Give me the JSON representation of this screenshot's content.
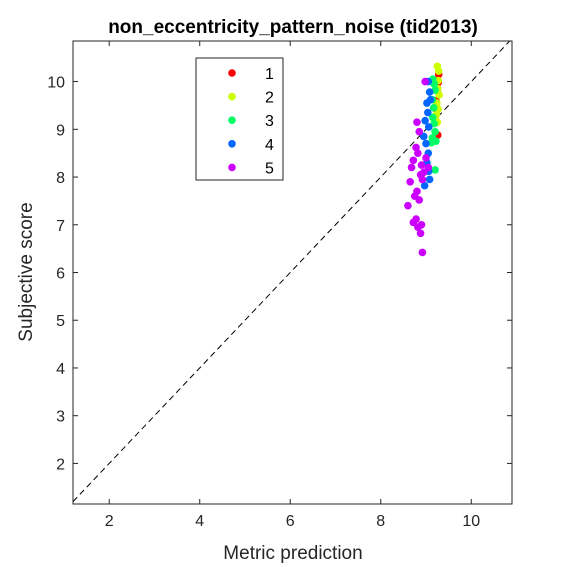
{
  "chart_data": {
    "type": "scatter",
    "title": "non_eccentricity_pattern_noise (tid2013)",
    "xlabel": "Metric prediction",
    "ylabel": "Subjective score",
    "xlim": [
      1.2,
      10.9
    ],
    "ylim": [
      1.15,
      10.85
    ],
    "xticks": [
      2,
      4,
      6,
      8,
      10
    ],
    "yticks": [
      2,
      3,
      4,
      5,
      6,
      7,
      8,
      9,
      10
    ],
    "grid": false,
    "legend_position": "top-left-inside",
    "reference_line": "y = x (dashed)",
    "series": [
      {
        "name": "1",
        "color": "#ff0000",
        "points": [
          [
            9.28,
            10.15
          ],
          [
            9.27,
            9.98
          ],
          [
            9.25,
            9.82
          ],
          [
            9.22,
            9.6
          ],
          [
            9.24,
            9.4
          ],
          [
            9.26,
            8.88
          ],
          [
            9.2,
            9.2
          ]
        ]
      },
      {
        "name": "2",
        "color": "#ccff00",
        "points": [
          [
            9.25,
            10.32
          ],
          [
            9.28,
            10.22
          ],
          [
            9.27,
            10.02
          ],
          [
            9.26,
            9.85
          ],
          [
            9.29,
            9.72
          ],
          [
            9.24,
            9.55
          ],
          [
            9.27,
            9.42
          ],
          [
            9.23,
            9.3
          ],
          [
            9.25,
            9.15
          ]
        ]
      },
      {
        "name": "3",
        "color": "#00ff66",
        "points": [
          [
            9.15,
            10.05
          ],
          [
            9.18,
            9.95
          ],
          [
            9.2,
            9.82
          ],
          [
            9.14,
            9.62
          ],
          [
            9.17,
            9.45
          ],
          [
            9.15,
            9.25
          ],
          [
            9.18,
            9.12
          ],
          [
            9.2,
            8.95
          ],
          [
            9.14,
            8.82
          ],
          [
            9.12,
            8.72
          ],
          [
            9.22,
            8.75
          ],
          [
            9.2,
            8.15
          ]
        ]
      },
      {
        "name": "4",
        "color": "#0066ff",
        "points": [
          [
            9.05,
            10.0
          ],
          [
            9.08,
            9.78
          ],
          [
            9.1,
            9.62
          ],
          [
            9.02,
            9.55
          ],
          [
            9.04,
            9.35
          ],
          [
            8.98,
            9.18
          ],
          [
            9.06,
            9.05
          ],
          [
            8.95,
            8.85
          ],
          [
            9.0,
            8.7
          ],
          [
            9.05,
            8.5
          ],
          [
            9.02,
            8.3
          ],
          [
            9.06,
            8.12
          ],
          [
            9.08,
            7.95
          ],
          [
            8.97,
            7.82
          ]
        ]
      },
      {
        "name": "5",
        "color": "#cc00ff",
        "points": [
          [
            8.98,
            10.0
          ],
          [
            8.8,
            9.15
          ],
          [
            8.85,
            8.95
          ],
          [
            8.78,
            8.62
          ],
          [
            8.82,
            8.5
          ],
          [
            8.72,
            8.35
          ],
          [
            8.9,
            8.25
          ],
          [
            8.68,
            8.2
          ],
          [
            8.95,
            8.1
          ],
          [
            8.88,
            8.05
          ],
          [
            8.92,
            7.95
          ],
          [
            8.65,
            7.9
          ],
          [
            8.8,
            7.7
          ],
          [
            8.75,
            7.6
          ],
          [
            8.85,
            7.52
          ],
          [
            8.6,
            7.4
          ],
          [
            8.78,
            7.12
          ],
          [
            8.9,
            7.0
          ],
          [
            8.72,
            7.05
          ],
          [
            8.82,
            6.95
          ],
          [
            8.88,
            6.82
          ],
          [
            8.92,
            6.42
          ],
          [
            9.05,
            8.2
          ],
          [
            9.0,
            8.4
          ]
        ]
      }
    ]
  }
}
